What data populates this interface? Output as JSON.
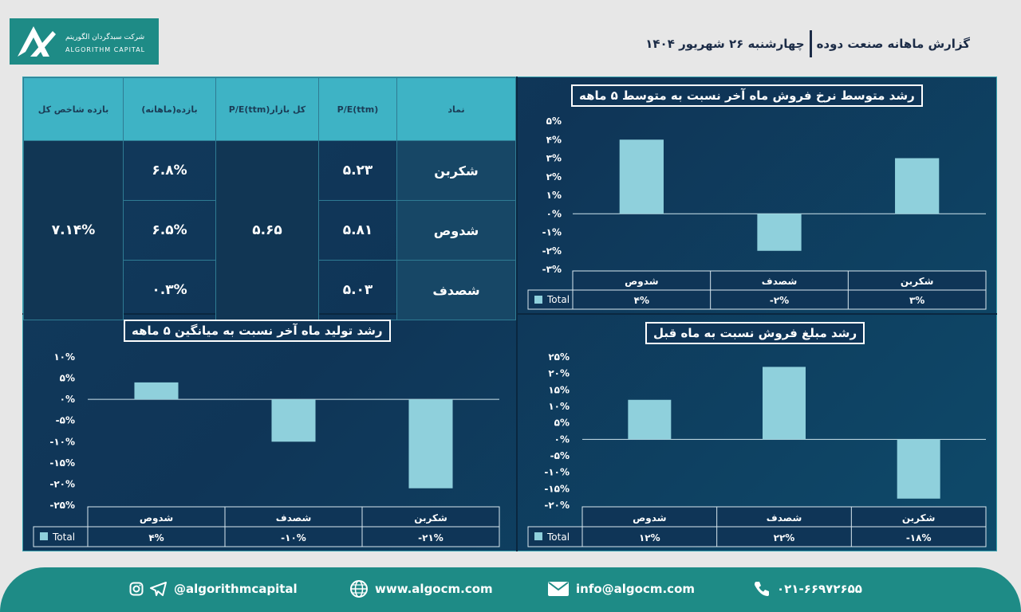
{
  "logo": {
    "name_fa": "شرکت سبدگردان الگوریتم",
    "name_en": "ALGORITHM CAPITAL"
  },
  "header": {
    "title": "گزارش ماهانه  صنعت دوده",
    "date": "چهارشنبه ۲۶ شهریور ۱۴۰۴"
  },
  "table": {
    "headers": [
      "نماد",
      "P/E(ttm)",
      "P/E(ttm)کل بازار",
      "بازده(ماهانه)",
      "بازده شاخص کل"
    ],
    "rows": [
      {
        "symbol": "شکربن",
        "pe": "۵.۲۳",
        "ret": "۶.۸%"
      },
      {
        "symbol": "شدوص",
        "pe": "۵.۸۱",
        "ret": "۶.۵%"
      },
      {
        "symbol": "شصدف",
        "pe": "۵.۰۳",
        "ret": "۰.۳%"
      }
    ],
    "market_pe": "۵.۶۵",
    "index_return": "۷.۱۴%"
  },
  "chart_data": [
    {
      "type": "bar",
      "title": "رشد متوسط نرخ فروش ماه آخر نسبت به متوسط ۵ ماهه",
      "categories": [
        "شدوص",
        "شصدف",
        "شکربن"
      ],
      "series": [
        {
          "name": "Total",
          "values": [
            4,
            -2,
            3
          ]
        }
      ],
      "value_labels": [
        "۴%",
        "-۲%",
        "۳%"
      ],
      "yticks": [
        "۵%",
        "۴%",
        "۳%",
        "۲%",
        "۱%",
        "۰%",
        "-۱%",
        "-۲%",
        "-۳%"
      ],
      "ylim": [
        -3,
        5
      ],
      "ytick_values": [
        5,
        4,
        3,
        2,
        1,
        0,
        -1,
        -2,
        -3
      ]
    },
    {
      "type": "bar",
      "title": "رشد تولید ماه آخر نسبت به میانگین ۵ ماهه",
      "categories": [
        "شدوص",
        "شصدف",
        "شکربن"
      ],
      "series": [
        {
          "name": "Total",
          "values": [
            4,
            -10,
            -21
          ]
        }
      ],
      "value_labels": [
        "۴%",
        "-۱۰%",
        "-۲۱%"
      ],
      "yticks": [
        "۱۰%",
        "۵%",
        "۰%",
        "-۵%",
        "-۱۰%",
        "-۱۵%",
        "-۲۰%",
        "-۲۵%"
      ],
      "ylim": [
        -25,
        10
      ],
      "ytick_values": [
        10,
        5,
        0,
        -5,
        -10,
        -15,
        -20,
        -25
      ]
    },
    {
      "type": "bar",
      "title": "رشد مبلغ فروش نسبت به ماه قبل",
      "categories": [
        "شدوص",
        "شصدف",
        "شکربن"
      ],
      "series": [
        {
          "name": "Total",
          "values": [
            12,
            22,
            -18
          ]
        }
      ],
      "value_labels": [
        "۱۲%",
        "۲۲%",
        "-۱۸%"
      ],
      "yticks": [
        "۲۵%",
        "۲۰%",
        "۱۵%",
        "۱۰%",
        "۵%",
        "۰%",
        "-۵%",
        "-۱۰%",
        "-۱۵%",
        "-۲۰%"
      ],
      "ylim": [
        -20,
        25
      ],
      "ytick_values": [
        25,
        20,
        15,
        10,
        5,
        0,
        -5,
        -10,
        -15,
        -20
      ]
    }
  ],
  "footer": {
    "social": "@algorithmcapital",
    "website": "www.algocm.com",
    "email": "info@algocm.com",
    "phone": "۰۲۱-۶۶۹۷۲۶۵۵"
  },
  "colors": {
    "bar": "#8fd0dc",
    "panel": "#0f3557",
    "accent": "#1e8b86"
  }
}
